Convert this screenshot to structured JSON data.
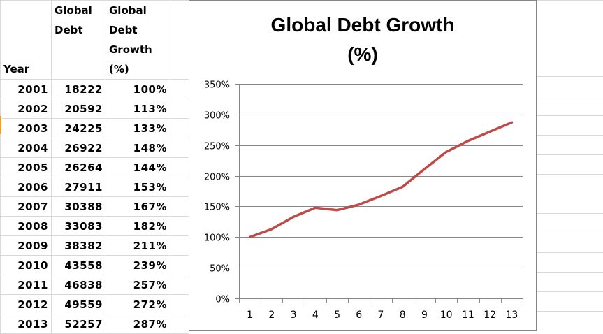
{
  "sheet": {
    "headers": {
      "year": "Year",
      "debt_line1": "Global",
      "debt_line2": "Debt",
      "growth_line1": "Global",
      "growth_line2": "Debt",
      "growth_line3": "Growth",
      "growth_line4": "(%)"
    },
    "rows": [
      {
        "year": "2001",
        "debt": "18222",
        "growth": "100%"
      },
      {
        "year": "2002",
        "debt": "20592",
        "growth": "113%"
      },
      {
        "year": "2003",
        "debt": "24225",
        "growth": "133%"
      },
      {
        "year": "2004",
        "debt": "26922",
        "growth": "148%"
      },
      {
        "year": "2005",
        "debt": "26264",
        "growth": "144%"
      },
      {
        "year": "2006",
        "debt": "27911",
        "growth": "153%"
      },
      {
        "year": "2007",
        "debt": "30388",
        "growth": "167%"
      },
      {
        "year": "2008",
        "debt": "33083",
        "growth": "182%"
      },
      {
        "year": "2009",
        "debt": "38382",
        "growth": "211%"
      },
      {
        "year": "2010",
        "debt": "43558",
        "growth": "239%"
      },
      {
        "year": "2011",
        "debt": "46838",
        "growth": "257%"
      },
      {
        "year": "2012",
        "debt": "49559",
        "growth": "272%"
      },
      {
        "year": "2013",
        "debt": "52257",
        "growth": "287%"
      }
    ]
  },
  "chart": {
    "title_line1": "Global Debt Growth",
    "title_line2": "(%)"
  },
  "colors": {
    "series_line": "#be4b48",
    "gridline": "#868686",
    "cell_border": "#d9d9d9"
  },
  "chart_data": {
    "type": "line",
    "title": "Global Debt Growth (%)",
    "xlabel": "",
    "ylabel": "",
    "categories": [
      "1",
      "2",
      "3",
      "4",
      "5",
      "6",
      "7",
      "8",
      "9",
      "10",
      "11",
      "12",
      "13"
    ],
    "series": [
      {
        "name": "Global Debt Growth (%)",
        "values": [
          100,
          113,
          133,
          148,
          144,
          153,
          167,
          182,
          211,
          239,
          257,
          272,
          287
        ]
      }
    ],
    "ylim": [
      0,
      350
    ],
    "yticks": [
      "0%",
      "50%",
      "100%",
      "150%",
      "200%",
      "250%",
      "300%",
      "350%"
    ],
    "grid": true,
    "legend": "none"
  }
}
